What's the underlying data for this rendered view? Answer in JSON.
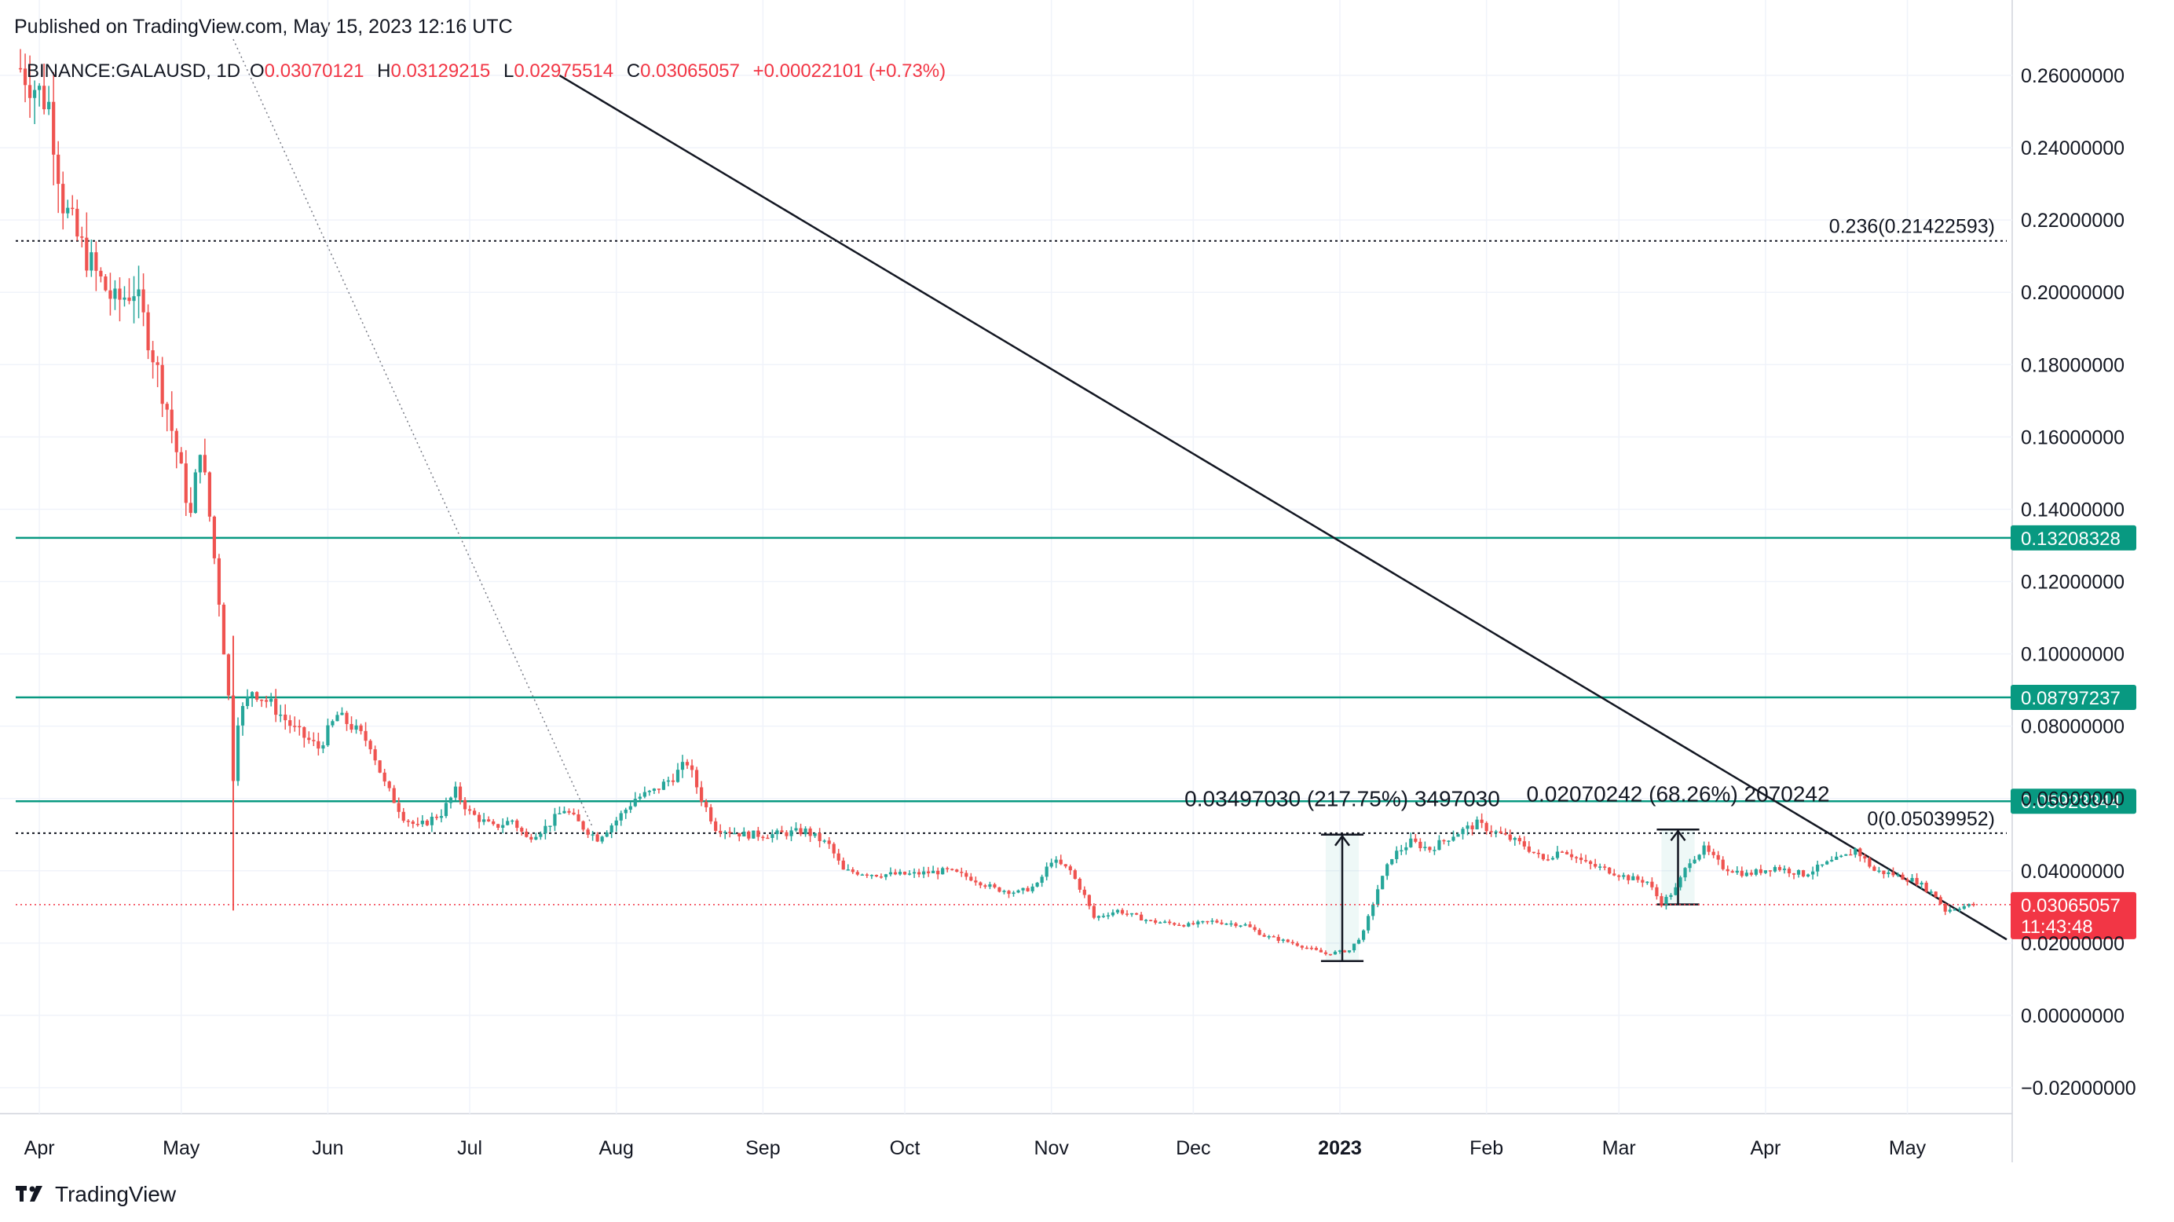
{
  "header": {
    "published": "Published on TradingView.com, May 15, 2023 12:16 UTC"
  },
  "brand": {
    "name": "TradingView",
    "logo_icon": "tradingview-logo-icon"
  },
  "colors": {
    "up": "#26a69a",
    "down": "#ef5350",
    "level": "#089981",
    "last_price": "#f23645",
    "text": "#131722",
    "grid": "#f0f3fa"
  },
  "chart_data": {
    "type": "candlestick",
    "symbol": "BINANCE:GALAUSD",
    "interval": "1D",
    "legend": {
      "open_label": "O",
      "open": "0.03070121",
      "high_label": "H",
      "high": "0.03129215",
      "low_label": "L",
      "low": "0.02975514",
      "close_label": "C",
      "close": "0.03065057",
      "change": "+0.00022101 (+0.73%)"
    },
    "y_axis": {
      "ylim": [
        -0.025,
        0.27
      ],
      "ticks": [
        "0.26000000",
        "0.24000000",
        "0.22000000",
        "0.20000000",
        "0.18000000",
        "0.16000000",
        "0.14000000",
        "0.12000000",
        "0.10000000",
        "0.08000000",
        "0.06000000",
        "0.04000000",
        "0.02000000",
        "0.00000000",
        "−0.02000000"
      ],
      "tick_values": [
        0.26,
        0.24,
        0.22,
        0.2,
        0.18,
        0.16,
        0.14,
        0.12,
        0.1,
        0.08,
        0.06,
        0.04,
        0.02,
        0.0,
        -0.02
      ]
    },
    "x_axis": {
      "range": [
        "2022-03-27",
        "2023-05-22"
      ],
      "ticks": [
        {
          "label": "Apr",
          "date": "2022-04-01"
        },
        {
          "label": "May",
          "date": "2022-05-01"
        },
        {
          "label": "Jun",
          "date": "2022-06-01"
        },
        {
          "label": "Jul",
          "date": "2022-07-01"
        },
        {
          "label": "Aug",
          "date": "2022-08-01"
        },
        {
          "label": "Sep",
          "date": "2022-09-01"
        },
        {
          "label": "Oct",
          "date": "2022-10-01"
        },
        {
          "label": "Nov",
          "date": "2022-11-01"
        },
        {
          "label": "Dec",
          "date": "2022-12-01"
        },
        {
          "label": "2023",
          "date": "2023-01-01",
          "bold": true
        },
        {
          "label": "Feb",
          "date": "2023-02-01"
        },
        {
          "label": "Mar",
          "date": "2023-03-01"
        },
        {
          "label": "Apr",
          "date": "2023-04-01"
        },
        {
          "label": "May",
          "date": "2023-05-01"
        }
      ]
    },
    "price_path": [
      [
        "2022-03-28",
        0.262
      ],
      [
        "2022-04-03",
        0.252
      ],
      [
        "2022-04-06",
        0.225
      ],
      [
        "2022-04-09",
        0.215
      ],
      [
        "2022-04-13",
        0.205
      ],
      [
        "2022-04-17",
        0.197
      ],
      [
        "2022-04-21",
        0.201
      ],
      [
        "2022-04-24",
        0.188
      ],
      [
        "2022-04-28",
        0.168
      ],
      [
        "2022-05-01",
        0.15
      ],
      [
        "2022-05-03",
        0.138
      ],
      [
        "2022-05-05",
        0.158
      ],
      [
        "2022-05-07",
        0.138
      ],
      [
        "2022-05-09",
        0.115
      ],
      [
        "2022-05-11",
        0.088
      ],
      [
        "2022-05-12",
        0.066
      ],
      [
        "2022-05-13",
        0.082
      ],
      [
        "2022-05-16",
        0.09
      ],
      [
        "2022-05-20",
        0.086
      ],
      [
        "2022-05-25",
        0.079
      ],
      [
        "2022-05-30",
        0.074
      ],
      [
        "2022-06-03",
        0.083
      ],
      [
        "2022-06-06",
        0.08
      ],
      [
        "2022-06-10",
        0.075
      ],
      [
        "2022-06-13",
        0.064
      ],
      [
        "2022-06-17",
        0.055
      ],
      [
        "2022-06-20",
        0.052
      ],
      [
        "2022-06-25",
        0.056
      ],
      [
        "2022-06-28",
        0.062
      ],
      [
        "2022-07-01",
        0.056
      ],
      [
        "2022-07-06",
        0.052
      ],
      [
        "2022-07-10",
        0.054
      ],
      [
        "2022-07-13",
        0.049
      ],
      [
        "2022-07-17",
        0.052
      ],
      [
        "2022-07-21",
        0.057
      ],
      [
        "2022-07-25",
        0.052
      ],
      [
        "2022-07-28",
        0.049
      ],
      [
        "2022-08-01",
        0.054
      ],
      [
        "2022-08-05",
        0.06
      ],
      [
        "2022-08-09",
        0.062
      ],
      [
        "2022-08-13",
        0.066
      ],
      [
        "2022-08-16",
        0.07
      ],
      [
        "2022-08-19",
        0.06
      ],
      [
        "2022-08-22",
        0.052
      ],
      [
        "2022-08-28",
        0.05
      ],
      [
        "2022-09-03",
        0.05
      ],
      [
        "2022-09-10",
        0.051
      ],
      [
        "2022-09-15",
        0.047
      ],
      [
        "2022-09-18",
        0.04
      ],
      [
        "2022-09-25",
        0.039
      ],
      [
        "2022-10-02",
        0.039
      ],
      [
        "2022-10-10",
        0.04
      ],
      [
        "2022-10-15",
        0.038
      ],
      [
        "2022-10-20",
        0.035
      ],
      [
        "2022-10-25",
        0.034
      ],
      [
        "2022-10-29",
        0.036
      ],
      [
        "2022-11-01",
        0.043
      ],
      [
        "2022-11-05",
        0.04
      ],
      [
        "2022-11-08",
        0.033
      ],
      [
        "2022-11-10",
        0.027
      ],
      [
        "2022-11-15",
        0.029
      ],
      [
        "2022-11-22",
        0.026
      ],
      [
        "2022-11-30",
        0.025
      ],
      [
        "2022-12-05",
        0.026
      ],
      [
        "2022-12-12",
        0.025
      ],
      [
        "2022-12-16",
        0.022
      ],
      [
        "2022-12-22",
        0.02
      ],
      [
        "2022-12-29",
        0.017
      ],
      [
        "2023-01-03",
        0.018
      ],
      [
        "2023-01-06",
        0.023
      ],
      [
        "2023-01-09",
        0.035
      ],
      [
        "2023-01-12",
        0.044
      ],
      [
        "2023-01-16",
        0.048
      ],
      [
        "2023-01-20",
        0.046
      ],
      [
        "2023-01-25",
        0.05
      ],
      [
        "2023-01-30",
        0.053
      ],
      [
        "2023-02-04",
        0.05
      ],
      [
        "2023-02-09",
        0.047
      ],
      [
        "2023-02-13",
        0.043
      ],
      [
        "2023-02-17",
        0.046
      ],
      [
        "2023-02-22",
        0.042
      ],
      [
        "2023-02-27",
        0.04
      ],
      [
        "2023-03-03",
        0.038
      ],
      [
        "2023-03-07",
        0.037
      ],
      [
        "2023-03-10",
        0.031
      ],
      [
        "2023-03-13",
        0.035
      ],
      [
        "2023-03-16",
        0.043
      ],
      [
        "2023-03-19",
        0.046
      ],
      [
        "2023-03-23",
        0.041
      ],
      [
        "2023-03-28",
        0.039
      ],
      [
        "2023-04-03",
        0.041
      ],
      [
        "2023-04-09",
        0.039
      ],
      [
        "2023-04-14",
        0.042
      ],
      [
        "2023-04-18",
        0.044
      ],
      [
        "2023-04-20",
        0.046
      ],
      [
        "2023-04-24",
        0.04
      ],
      [
        "2023-04-28",
        0.039
      ],
      [
        "2023-05-03",
        0.037
      ],
      [
        "2023-05-07",
        0.033
      ],
      [
        "2023-05-09",
        0.029
      ],
      [
        "2023-05-12",
        0.03
      ],
      [
        "2023-05-15",
        0.0306
      ]
    ],
    "horizontal_levels": [
      {
        "value": 0.13208328,
        "label": "0.13208328"
      },
      {
        "value": 0.08797237,
        "label": "0.08797237"
      },
      {
        "value": 0.05923344,
        "label": "0.05923344"
      }
    ],
    "last_price": {
      "value": 0.03065057,
      "label": "0.03065057",
      "countdown": "11:43:48"
    },
    "fib_levels": [
      {
        "value": 0.21422593,
        "label": "0.236(0.21422593)"
      },
      {
        "value": 0.05039952,
        "label": "0(0.05039952)"
      }
    ],
    "trendline": {
      "from": [
        "2022-07-20",
        0.26
      ],
      "to": [
        "2023-05-22",
        0.021
      ]
    },
    "dotted_trendline": {
      "from": [
        "2022-05-12",
        0.27
      ],
      "to": [
        "2022-07-27",
        0.052
      ]
    },
    "measurements": [
      {
        "from_date": "2022-12-29",
        "to_date": "2023-01-05",
        "low": 0.01503,
        "high": 0.05,
        "label": "0.03497030 (217.75%) 3497030"
      },
      {
        "from_date": "2023-03-10",
        "to_date": "2023-03-17",
        "low": 0.0307,
        "high": 0.0514,
        "label": "0.02070242 (68.26%) 2070242"
      }
    ]
  }
}
